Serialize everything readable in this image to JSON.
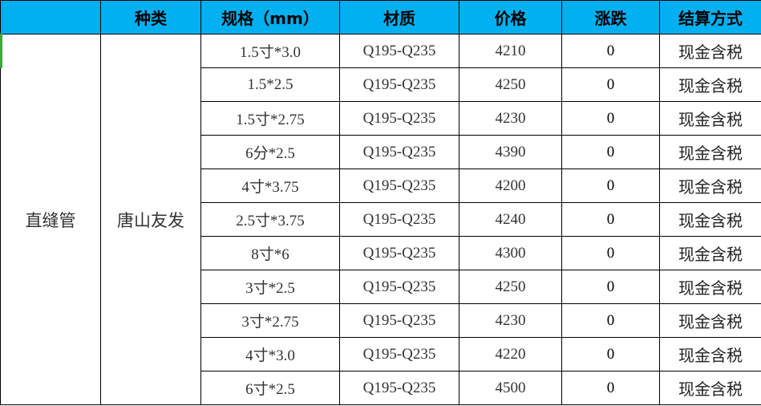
{
  "header": [
    "",
    "种类",
    "规格（mm）",
    "材质",
    "价格",
    "涨跌",
    "结算方式"
  ],
  "group": {
    "product": "直缝管",
    "brand": "唐山友发"
  },
  "rows": [
    {
      "spec": "1.5寸*3.0",
      "material": "Q195-Q235",
      "price": "4210",
      "change": "0",
      "payment": "现金含税"
    },
    {
      "spec": "1.5*2.5",
      "material": "Q195-Q235",
      "price": "4250",
      "change": "0",
      "payment": "现金含税"
    },
    {
      "spec": "1.5寸*2.75",
      "material": "Q195-Q235",
      "price": "4230",
      "change": "0",
      "payment": "现金含税"
    },
    {
      "spec": "6分*2.5",
      "material": "Q195-Q235",
      "price": "4390",
      "change": "0",
      "payment": "现金含税"
    },
    {
      "spec": "4寸*3.75",
      "material": "Q195-Q235",
      "price": "4200",
      "change": "0",
      "payment": "现金含税"
    },
    {
      "spec": "2.5寸*3.75",
      "material": "Q195-Q235",
      "price": "4240",
      "change": "0",
      "payment": "现金含税"
    },
    {
      "spec": "8寸*6",
      "material": "Q195-Q235",
      "price": "4300",
      "change": "0",
      "payment": "现金含税"
    },
    {
      "spec": "3寸*2.5",
      "material": "Q195-Q235",
      "price": "4250",
      "change": "0",
      "payment": "现金含税"
    },
    {
      "spec": "3寸*2.75",
      "material": "Q195-Q235",
      "price": "4230",
      "change": "0",
      "payment": "现金含税"
    },
    {
      "spec": "4寸*3.0",
      "material": "Q195-Q235",
      "price": "4220",
      "change": "0",
      "payment": "现金含税"
    },
    {
      "spec": "6寸*2.5",
      "material": "Q195-Q235",
      "price": "4500",
      "change": "0",
      "payment": "现金含税"
    }
  ],
  "colors": {
    "header_bg": "#00b0f0",
    "selection_marker": "#3aa83a"
  }
}
